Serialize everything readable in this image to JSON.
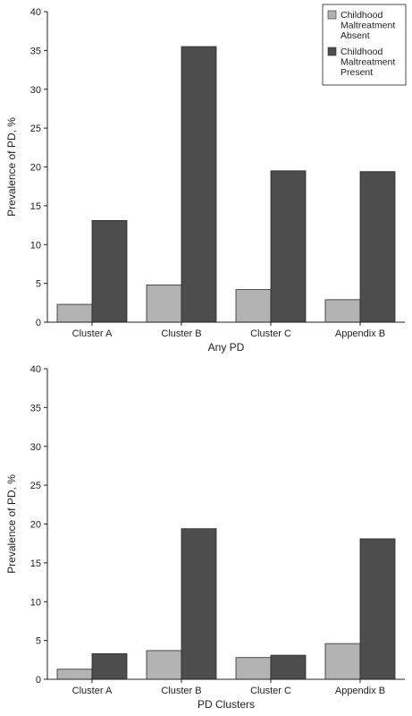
{
  "colors": {
    "absent": "#b3b3b3",
    "present": "#4d4d4d",
    "axis": "#222222",
    "bar_edge": "#2a2a2a"
  },
  "legend": {
    "placement": "top-right of upper panel",
    "entries": [
      {
        "key": "absent",
        "lines": [
          "Childhood",
          "Maltreatment",
          "Absent"
        ]
      },
      {
        "key": "present",
        "lines": [
          "Childhood",
          "Maltreatment",
          "Present"
        ]
      }
    ]
  },
  "chart_data": [
    {
      "type": "bar",
      "title": "",
      "xlabel": "Any PD",
      "ylabel": "Prevalence of PD, %",
      "ylim": [
        0,
        40
      ],
      "yticks": [
        0,
        5,
        10,
        15,
        20,
        25,
        30,
        35,
        40
      ],
      "grid": false,
      "categories": [
        "Cluster A",
        "Cluster B",
        "Cluster C",
        "Appendix B"
      ],
      "series": [
        {
          "name": "Childhood Maltreatment Absent",
          "color_key": "absent",
          "values": [
            2.3,
            4.8,
            4.2,
            2.9
          ]
        },
        {
          "name": "Childhood Maltreatment Present",
          "color_key": "present",
          "values": [
            13.1,
            35.5,
            19.5,
            19.4
          ]
        }
      ]
    },
    {
      "type": "bar",
      "title": "",
      "xlabel": "PD Clusters",
      "ylabel": "Prevalence of PD, %",
      "ylim": [
        0,
        40
      ],
      "yticks": [
        0,
        5,
        10,
        15,
        20,
        25,
        30,
        35,
        40
      ],
      "grid": false,
      "categories": [
        "Cluster A",
        "Cluster B",
        "Cluster C",
        "Appendix B"
      ],
      "series": [
        {
          "name": "Childhood Maltreatment Absent",
          "color_key": "absent",
          "values": [
            1.3,
            3.7,
            2.8,
            4.6
          ]
        },
        {
          "name": "Childhood Maltreatment Present",
          "color_key": "present",
          "values": [
            3.3,
            19.4,
            3.1,
            18.1
          ]
        }
      ]
    }
  ]
}
